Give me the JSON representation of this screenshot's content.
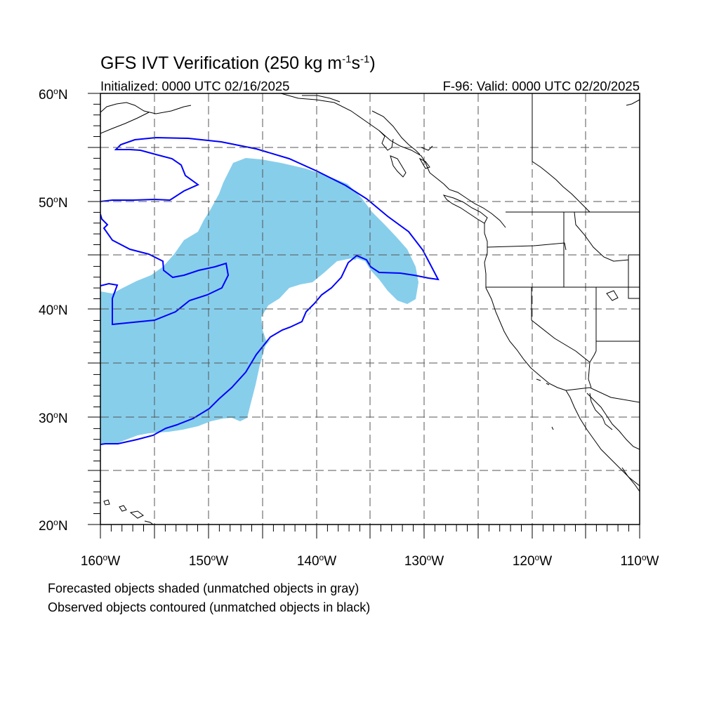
{
  "title": {
    "main": "GFS IVT Verification (250 kg m",
    "sup1": "-1",
    "mid": "s",
    "sup2": "-1",
    "end": ")"
  },
  "initialized": "Initialized: 0000 UTC 02/16/2025",
  "valid": "F-96: Valid: 0000 UTC 02/20/2025",
  "map": {
    "lon_range": [
      -160,
      -110
    ],
    "lat_range": [
      20,
      60
    ],
    "lat_labels": [
      "60",
      "50",
      "40",
      "30",
      "20"
    ],
    "lon_labels": [
      "160",
      "150",
      "140",
      "130",
      "120",
      "110"
    ],
    "lat_suffix": "N",
    "lon_suffix": "W",
    "degree_symbol": "o",
    "gridlines": "dashed",
    "forecast_fill_color": "#87ceeb",
    "observed_contour_color": "#0000ff"
  },
  "captions": [
    "Forecasted objects shaded (unmatched objects in gray)",
    "Observed objects contoured (unmatched objects in black)"
  ]
}
